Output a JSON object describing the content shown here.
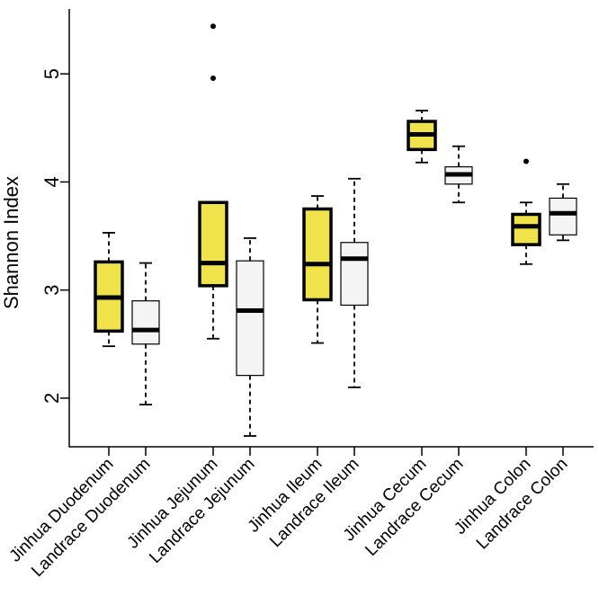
{
  "chart_data": {
    "type": "boxplot",
    "title": "",
    "xlabel": "",
    "ylabel": "Shannon Index",
    "ylim": [
      1.55,
      5.6
    ],
    "yticks": [
      2,
      3,
      4,
      5
    ],
    "categories": [
      "Jinhua Duodenum",
      "Landrace Duodenum",
      "Jinhua Jejunum",
      "Landrace Jejunum",
      "Jinhua Ileum",
      "Landrace Ileum",
      "Jinhua Cecum",
      "Landrace Cecum",
      "Jinhua Colon",
      "Landrace Colon"
    ],
    "boxes": [
      {
        "group": "Jinhua",
        "min": 2.48,
        "q1": 2.62,
        "median": 2.93,
        "q3": 3.26,
        "max": 3.53,
        "outliers": []
      },
      {
        "group": "Landrace",
        "min": 1.94,
        "q1": 2.5,
        "median": 2.63,
        "q3": 2.9,
        "max": 3.25,
        "outliers": []
      },
      {
        "group": "Jinhua",
        "min": 2.55,
        "q1": 3.04,
        "median": 3.25,
        "q3": 3.81,
        "max": 3.81,
        "outliers": [
          4.96,
          5.44
        ]
      },
      {
        "group": "Landrace",
        "min": 1.65,
        "q1": 2.21,
        "median": 2.81,
        "q3": 3.27,
        "max": 3.48,
        "outliers": []
      },
      {
        "group": "Jinhua",
        "min": 2.51,
        "q1": 2.91,
        "median": 3.24,
        "q3": 3.75,
        "max": 3.87,
        "outliers": []
      },
      {
        "group": "Landrace",
        "min": 2.1,
        "q1": 2.86,
        "median": 3.29,
        "q3": 3.44,
        "max": 4.03,
        "outliers": []
      },
      {
        "group": "Jinhua",
        "min": 4.18,
        "q1": 4.3,
        "median": 4.44,
        "q3": 4.56,
        "max": 4.66,
        "outliers": []
      },
      {
        "group": "Landrace",
        "min": 3.81,
        "q1": 3.98,
        "median": 4.07,
        "q3": 4.14,
        "max": 4.33,
        "outliers": []
      },
      {
        "group": "Jinhua",
        "min": 3.24,
        "q1": 3.42,
        "median": 3.59,
        "q3": 3.7,
        "max": 3.81,
        "outliers": [
          4.19
        ]
      },
      {
        "group": "Landrace",
        "min": 3.46,
        "q1": 3.51,
        "median": 3.71,
        "q3": 3.85,
        "max": 3.98,
        "outliers": []
      }
    ],
    "colors": {
      "Jinhua": "#f0e24a",
      "Landrace": "#f4f4f4",
      "axis": "#000000"
    }
  }
}
